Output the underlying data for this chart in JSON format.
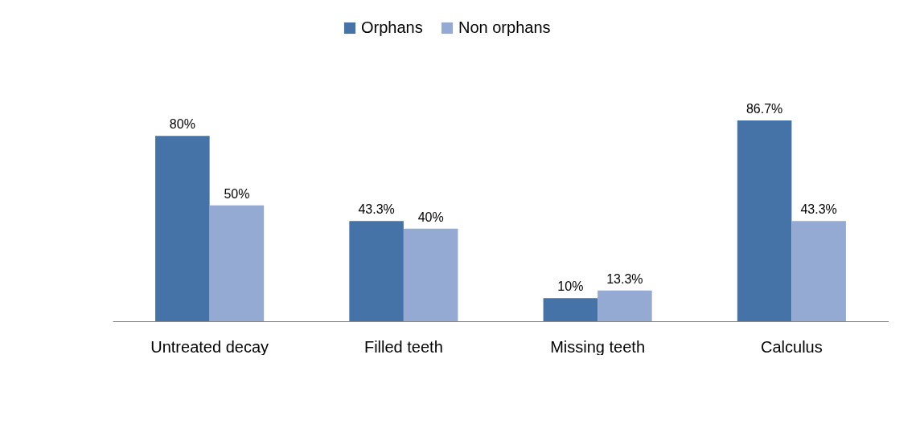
{
  "chart_data": {
    "type": "bar",
    "categories": [
      "Untreated decay",
      "Filled teeth",
      "Missing teeth",
      "Calculus"
    ],
    "series": [
      {
        "name": "Orphans",
        "color": "#4573a7",
        "values": [
          80,
          43.3,
          10,
          86.7
        ],
        "value_labels": [
          "80%",
          "43.3%",
          "10%",
          "86.7%"
        ]
      },
      {
        "name": "Non orphans",
        "color": "#95aad3",
        "values": [
          50,
          40,
          13.3,
          43.3
        ],
        "value_labels": [
          "50%",
          "40%",
          "13.3%",
          "43.3%"
        ]
      }
    ],
    "legend": "top",
    "grid": false
  }
}
